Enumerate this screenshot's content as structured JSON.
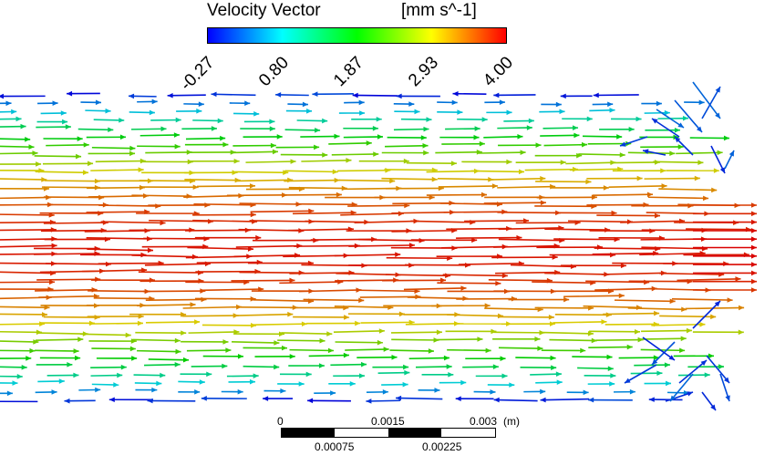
{
  "chart_data": {
    "type": "vector",
    "legend": {
      "title": "Velocity Vector",
      "unit": "[mm s^-1]",
      "ticks": [
        "-0.27",
        "0.80",
        "1.87",
        "2.93",
        "4.00"
      ],
      "range": [
        -0.27,
        4.0
      ],
      "colormap": [
        "#0000ff",
        "#00ffff",
        "#00ff00",
        "#ffff00",
        "#ff0000"
      ],
      "placement": "top-center"
    },
    "scale_bar": {
      "top_labels": [
        "0",
        "0.0015",
        "0.003"
      ],
      "unit": "(m)",
      "bottom_labels": [
        "0.00075",
        "0.00225"
      ]
    },
    "field": {
      "description_profile": "parabolic channel flow, max at centerline, recirculation near right wall",
      "max_speed": 4.0,
      "min_speed": -0.27
    }
  }
}
